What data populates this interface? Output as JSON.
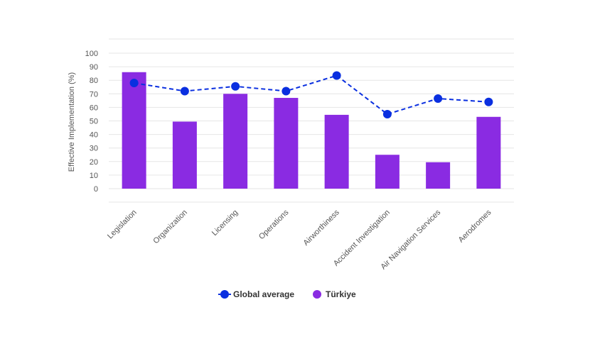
{
  "chart_data": {
    "type": "bar",
    "title": "",
    "xlabel": "",
    "ylabel": "Effective Implementation (%)",
    "ylim": [
      0,
      100
    ],
    "yticks": [
      0,
      10,
      20,
      30,
      40,
      50,
      60,
      70,
      80,
      90,
      100
    ],
    "categories": [
      "Legislation",
      "Organization",
      "Licensing",
      "Operations",
      "Airworthiness",
      "Accident Investigation",
      "Air Navigation Services",
      "Aerodromes"
    ],
    "series": [
      {
        "name": "Türkiye",
        "kind": "bar",
        "color": "#8a2be2",
        "values": [
          86,
          49.5,
          70,
          67,
          54.5,
          25,
          19.5,
          53
        ]
      },
      {
        "name": "Global average",
        "kind": "line-dashed-markers",
        "color": "#0a2fe0",
        "values": [
          78,
          72,
          75.5,
          72,
          83.5,
          55,
          66.5,
          64
        ]
      }
    ],
    "grid": true,
    "legend": "bottom-center"
  }
}
